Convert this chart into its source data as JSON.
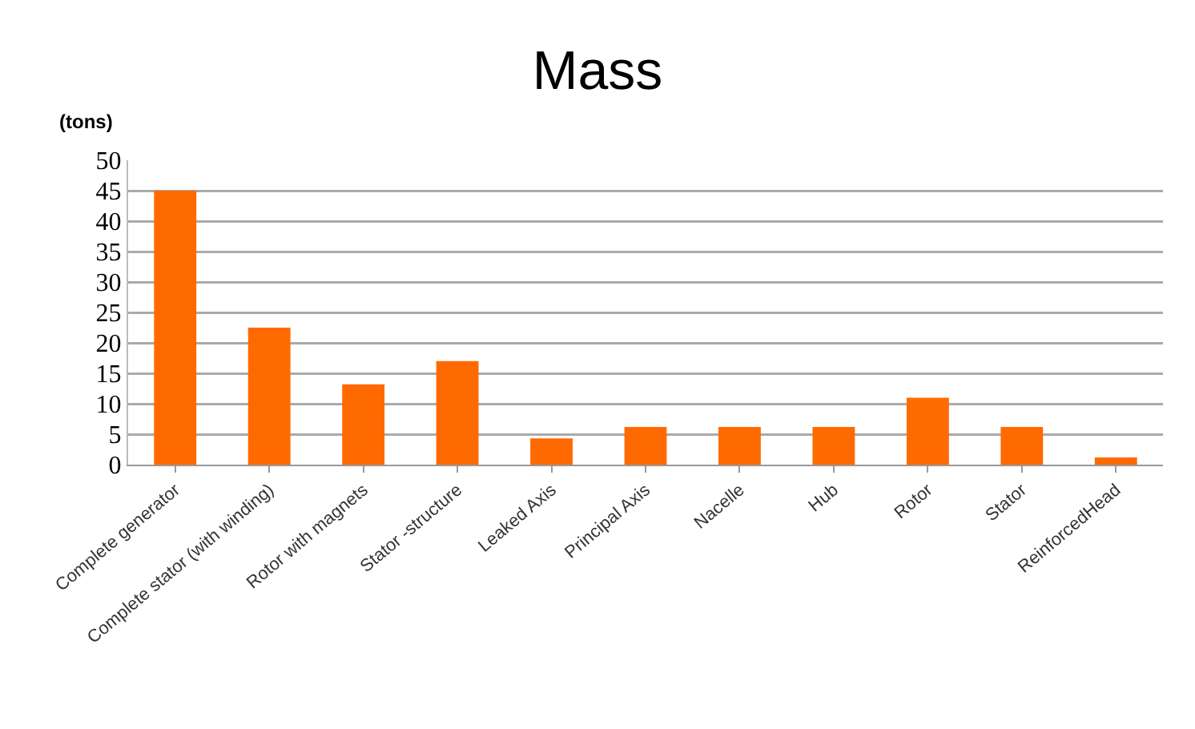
{
  "chart_data": {
    "type": "bar",
    "title": "Mass",
    "ylabel": "(tons)",
    "categories": [
      "Complete generator",
      "Complete stator (with winding)",
      "Rotor with magnets",
      "Stator -structure",
      "Leaked Axis",
      "Principal Axis",
      "Nacelle",
      "Hub",
      "Rotor",
      "Stator",
      "ReinforcedHead"
    ],
    "values": [
      45,
      22.5,
      13.2,
      17,
      4.3,
      6.2,
      6.2,
      6.2,
      11,
      6.2,
      1.2
    ],
    "color": "#ff6a00",
    "ylim": [
      0,
      50
    ],
    "yticks": [
      0,
      5,
      10,
      15,
      20,
      25,
      30,
      35,
      40,
      45,
      50
    ],
    "grid": "y"
  }
}
